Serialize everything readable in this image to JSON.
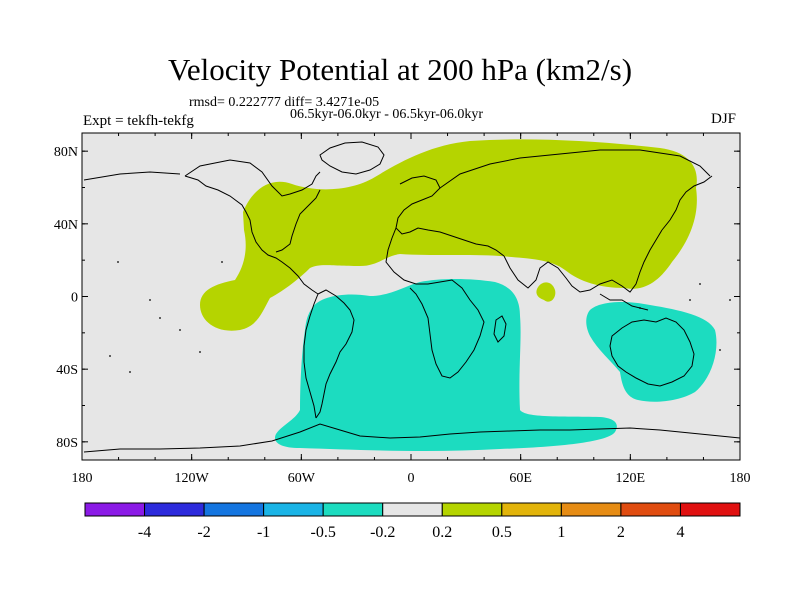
{
  "title": "Velocity Potential at 200 hPa (km2/s)",
  "stats_line": "rmsd= 0.222777 diff= 3.4271e-05",
  "experiment": "Expt = tekfh-tekfg",
  "period": "06.5kyr-06.0kyr - 06.5kyr-06.0kyr",
  "season": "DJF",
  "map": {
    "lon_range": [
      -180,
      180
    ],
    "lat_range": [
      -90,
      90
    ],
    "lon_ticks": [
      {
        "value": -180,
        "label": "180"
      },
      {
        "value": -120,
        "label": "120W"
      },
      {
        "value": -60,
        "label": "60W"
      },
      {
        "value": 0,
        "label": "0"
      },
      {
        "value": 60,
        "label": "60E"
      },
      {
        "value": 120,
        "label": "120E"
      },
      {
        "value": 180,
        "label": "180"
      }
    ],
    "lat_ticks": [
      {
        "value": 80,
        "label": "80N"
      },
      {
        "value": 40,
        "label": "40N"
      },
      {
        "value": 0,
        "label": "0"
      },
      {
        "value": -40,
        "label": "40S"
      },
      {
        "value": -80,
        "label": "80S"
      }
    ],
    "background_color": "#e6e6e6",
    "positive_color": "#b5d400",
    "negative_color": "#1cdcc0",
    "coastline_color": "#000000"
  },
  "colorbar": {
    "colors": [
      "#8b1ae6",
      "#2d2bdc",
      "#1475e0",
      "#1ab4e6",
      "#1cdcc0",
      "#e6e6e6",
      "#b5d400",
      "#e2b40a",
      "#e68c14",
      "#e04c10",
      "#e01010"
    ],
    "labels": [
      "-4",
      "-2",
      "-1",
      "-0.5",
      "-0.2",
      "0.2",
      "0.5",
      "1",
      "2",
      "4"
    ]
  }
}
